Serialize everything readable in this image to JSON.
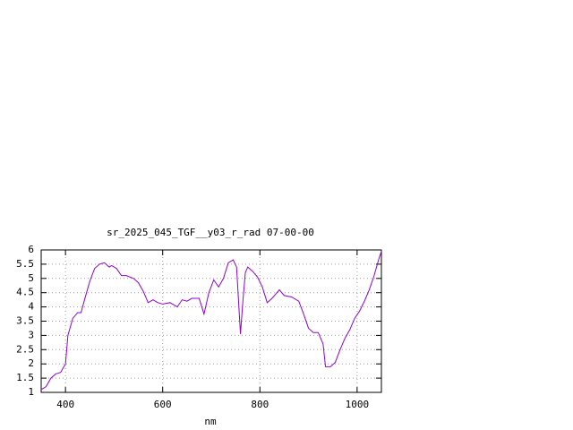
{
  "chart_data": {
    "type": "line",
    "title": "sr_2025_045_TGF__y03_r_rad 07-00-00",
    "x_label": "nm",
    "color": "#9400d3",
    "grid": true,
    "x": [
      350,
      360,
      370,
      380,
      390,
      400,
      405,
      415,
      425,
      432,
      440,
      450,
      460,
      470,
      480,
      490,
      495,
      505,
      515,
      525,
      540,
      550,
      560,
      570,
      580,
      590,
      600,
      615,
      630,
      640,
      650,
      660,
      675,
      685,
      695,
      705,
      715,
      725,
      735,
      745,
      752,
      760,
      765,
      770,
      775,
      785,
      795,
      805,
      815,
      825,
      840,
      850,
      865,
      880,
      890,
      900,
      910,
      920,
      930,
      935,
      945,
      955,
      965,
      975,
      985,
      995,
      1005,
      1015,
      1025,
      1035,
      1045,
      1050
    ],
    "values": [
      1.1,
      1.2,
      1.5,
      1.65,
      1.7,
      2.0,
      3.0,
      3.6,
      3.8,
      3.8,
      4.3,
      4.9,
      5.35,
      5.5,
      5.55,
      5.4,
      5.45,
      5.35,
      5.1,
      5.1,
      5.0,
      4.85,
      4.55,
      4.15,
      4.25,
      4.15,
      4.1,
      4.15,
      4.0,
      4.25,
      4.2,
      4.3,
      4.3,
      3.75,
      4.5,
      4.95,
      4.7,
      5.0,
      5.55,
      5.65,
      5.4,
      3.05,
      4.2,
      5.2,
      5.4,
      5.25,
      5.05,
      4.7,
      4.15,
      4.3,
      4.6,
      4.4,
      4.35,
      4.2,
      3.75,
      3.25,
      3.1,
      3.1,
      2.7,
      1.9,
      1.9,
      2.05,
      2.5,
      2.9,
      3.2,
      3.6,
      3.85,
      4.2,
      4.6,
      5.1,
      5.7,
      5.95
    ],
    "xlim": [
      350,
      1050
    ],
    "ylim": [
      1,
      6
    ],
    "xticks": [
      400,
      600,
      800,
      1000
    ],
    "yticks": [
      1,
      1.5,
      2,
      2.5,
      3,
      3.5,
      4,
      4.5,
      5,
      5.5,
      6
    ]
  }
}
